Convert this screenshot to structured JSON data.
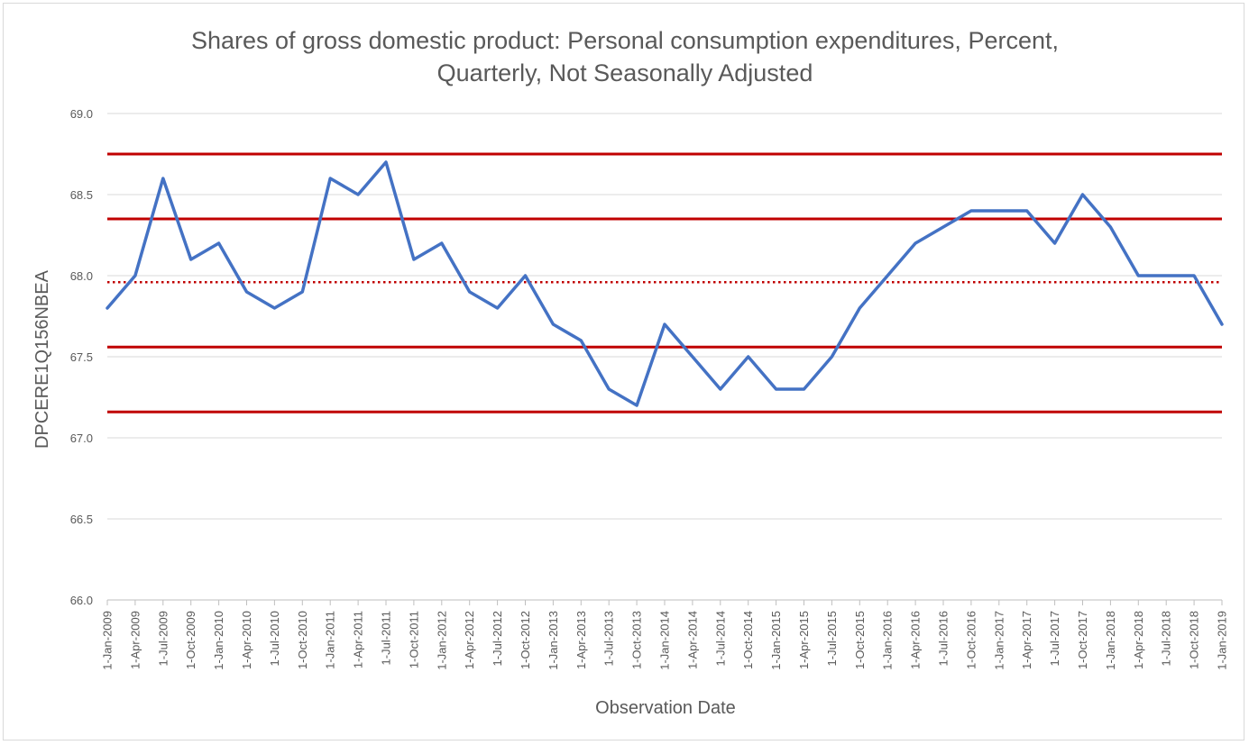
{
  "chart_data": {
    "type": "line",
    "title_lines": [
      "Shares of gross domestic product: Personal consumption expenditures, Percent,",
      "Quarterly, Not Seasonally Adjusted"
    ],
    "xlabel": "Observation Date",
    "ylabel": "DPCERE1Q156NBEA",
    "ylim": [
      66.0,
      69.0
    ],
    "y_ticks": [
      "66.0",
      "66.5",
      "67.0",
      "67.5",
      "68.0",
      "68.5",
      "69.0"
    ],
    "grid": "horizontal",
    "x": [
      "1-Jan-2009",
      "1-Apr-2009",
      "1-Jul-2009",
      "1-Oct-2009",
      "1-Jan-2010",
      "1-Apr-2010",
      "1-Jul-2010",
      "1-Oct-2010",
      "1-Jan-2011",
      "1-Apr-2011",
      "1-Jul-2011",
      "1-Oct-2011",
      "1-Jan-2012",
      "1-Apr-2012",
      "1-Jul-2012",
      "1-Oct-2012",
      "1-Jan-2013",
      "1-Apr-2013",
      "1-Jul-2013",
      "1-Oct-2013",
      "1-Jan-2014",
      "1-Apr-2014",
      "1-Jul-2014",
      "1-Oct-2014",
      "1-Jan-2015",
      "1-Apr-2015",
      "1-Jul-2015",
      "1-Oct-2015",
      "1-Jan-2016",
      "1-Apr-2016",
      "1-Jul-2016",
      "1-Oct-2016",
      "1-Jan-2017",
      "1-Apr-2017",
      "1-Jul-2017",
      "1-Oct-2017",
      "1-Jan-2018",
      "1-Apr-2018",
      "1-Jul-2018",
      "1-Oct-2018",
      "1-Jan-2019"
    ],
    "series": [
      {
        "values": [
          67.8,
          68.0,
          68.6,
          68.1,
          68.2,
          67.9,
          67.8,
          67.9,
          68.6,
          68.5,
          68.7,
          68.1,
          68.2,
          67.9,
          67.8,
          68.0,
          67.7,
          67.6,
          67.3,
          67.2,
          67.7,
          67.5,
          67.3,
          67.5,
          67.3,
          67.3,
          67.5,
          67.8,
          68.0,
          68.2,
          68.3,
          68.4,
          68.4,
          68.4,
          68.2,
          68.5,
          68.3,
          68.0,
          68.0,
          68.0,
          67.7
        ],
        "color": "#4472c4"
      }
    ],
    "reference_lines": [
      {
        "value": 68.75,
        "style": "solid",
        "color": "#c00000"
      },
      {
        "value": 68.35,
        "style": "solid",
        "color": "#c00000"
      },
      {
        "value": 67.96,
        "style": "dotted",
        "color": "#c00000"
      },
      {
        "value": 67.56,
        "style": "solid",
        "color": "#c00000"
      },
      {
        "value": 67.16,
        "style": "solid",
        "color": "#c00000"
      }
    ],
    "colors": {
      "grid": "#d9d9d9",
      "axis": "#bfbfbf",
      "text": "#595959"
    }
  }
}
